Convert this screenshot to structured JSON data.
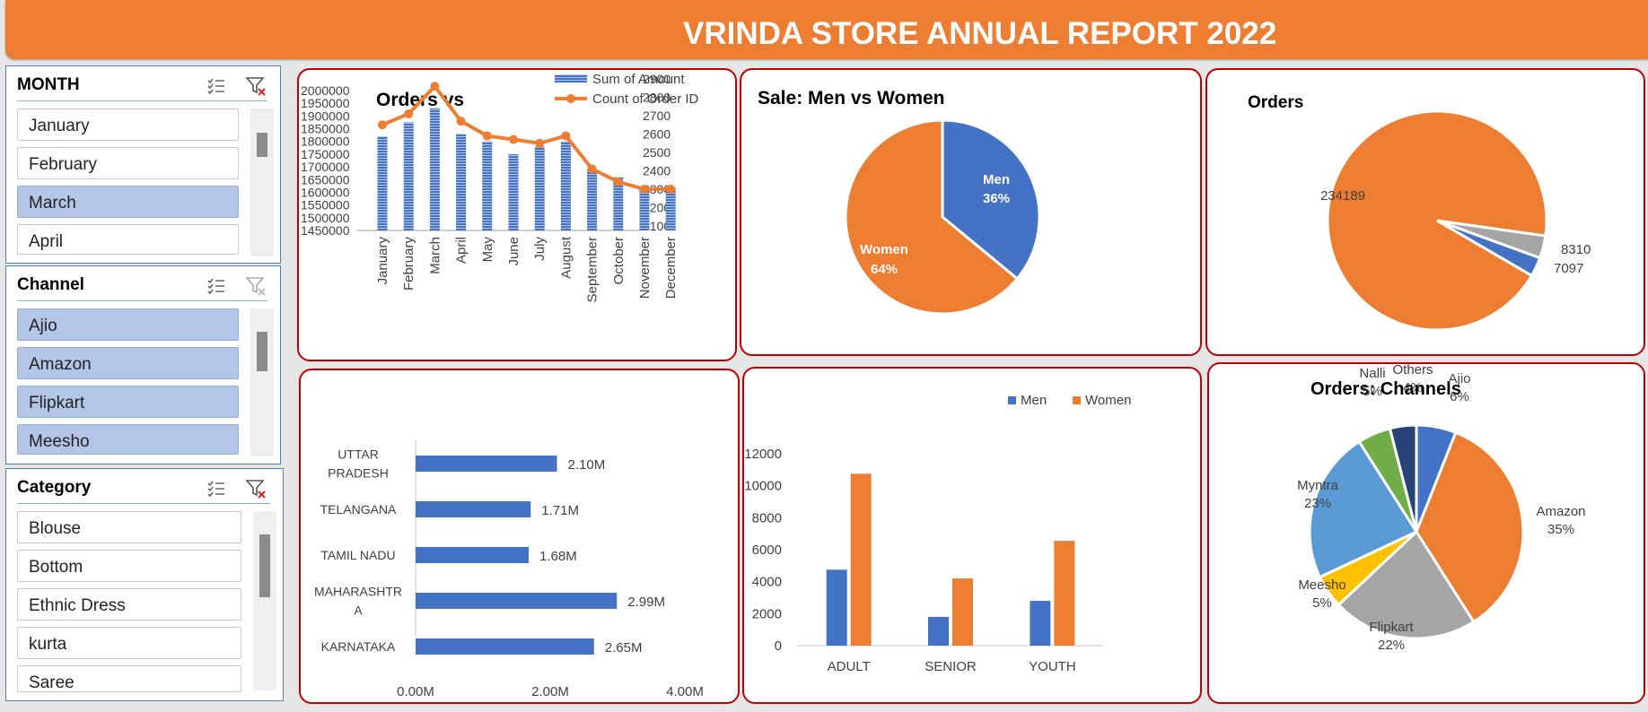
{
  "header": {
    "title": "VRINDA STORE ANNUAL REPORT 2022"
  },
  "slicers": {
    "month": {
      "title": "MONTH",
      "items": [
        {
          "label": "January",
          "selected": false
        },
        {
          "label": "February",
          "selected": false
        },
        {
          "label": "March",
          "selected": true
        },
        {
          "label": "April",
          "selected": false
        }
      ]
    },
    "channel": {
      "title": "Channel",
      "items": [
        {
          "label": "Ajio",
          "selected": true
        },
        {
          "label": "Amazon",
          "selected": true
        },
        {
          "label": "Flipkart",
          "selected": true
        },
        {
          "label": "Meesho",
          "selected": true
        }
      ]
    },
    "category": {
      "title": "Category",
      "items": [
        {
          "label": "Blouse",
          "selected": false
        },
        {
          "label": "Bottom",
          "selected": false
        },
        {
          "label": "Ethnic Dress",
          "selected": false
        },
        {
          "label": "kurta",
          "selected": false
        },
        {
          "label": "Saree",
          "selected": false
        }
      ]
    }
  },
  "icons": {
    "multi_select": "multi-select-icon",
    "clear_filter": "clear-filter-icon"
  },
  "colors": {
    "orange": "#ED7D31",
    "blue": "#4472C4",
    "gray": "#A5A5A5",
    "yellow": "#FFC000",
    "light_blue": "#5B9BD5",
    "green": "#70AD47",
    "navy": "#264478",
    "panel_border": "#C00000",
    "selected_item": "#B4C6E7"
  },
  "chart_data": [
    {
      "id": "orders-vs-sales",
      "type": "bar",
      "title": "Orders vs",
      "categories": [
        "January",
        "February",
        "March",
        "April",
        "May",
        "June",
        "July",
        "August",
        "September",
        "October",
        "November",
        "December"
      ],
      "series": [
        {
          "name": "Sum of Amount",
          "type": "bar",
          "axis": "left",
          "values": [
            1820000,
            1875000,
            1930000,
            1830000,
            1800000,
            1750000,
            1780000,
            1800000,
            1690000,
            1660000,
            1615000,
            1620000
          ]
        },
        {
          "name": "Count of Order ID",
          "type": "line",
          "axis": "right",
          "values": [
            2650,
            2710,
            2860,
            2670,
            2590,
            2570,
            2550,
            2590,
            2410,
            2340,
            2300,
            2300
          ]
        }
      ],
      "y_left": {
        "ticks": [
          "2000000",
          "1950000",
          "1900000",
          "1850000",
          "1800000",
          "1750000",
          "1700000",
          "1650000",
          "1600000",
          "1550000",
          "1500000",
          "1450000"
        ],
        "ylim": [
          1450000,
          2000000
        ]
      },
      "y_right": {
        "ticks": [
          "2900",
          "2800",
          "2700",
          "2600",
          "2500",
          "2400",
          "2300",
          "2200",
          "2100"
        ],
        "ylim": [
          2100,
          2900
        ]
      },
      "legend": "top-right"
    },
    {
      "id": "sale-men-women",
      "type": "pie",
      "title": "Sale: Men vs Women",
      "slices": [
        {
          "name": "Men",
          "label": "36%",
          "value": 36,
          "color": "#4472C4"
        },
        {
          "name": "Women",
          "label": "64%",
          "value": 64,
          "color": "#ED7D31"
        }
      ]
    },
    {
      "id": "orders-status",
      "type": "pie",
      "title": "Orders",
      "slices": [
        {
          "label": "234189",
          "value": 234189,
          "color": "#ED7D31"
        },
        {
          "label": "7097",
          "value": 7097,
          "color": "#4472C4"
        },
        {
          "label": "8310",
          "value": 8310,
          "color": "#A5A5A5"
        }
      ]
    },
    {
      "id": "top-states",
      "type": "bar",
      "orientation": "horizontal",
      "categories": [
        "UTTAR PRADESH",
        "TELANGANA",
        "TAMIL NADU",
        "MAHARASHTRA",
        "KARNATAKA"
      ],
      "category_lines": [
        [
          "UTTAR",
          "PRADESH"
        ],
        [
          "TELANGANA"
        ],
        [
          "TAMIL NADU"
        ],
        [
          "MAHARASHTR",
          "A"
        ],
        [
          "KARNATAKA"
        ]
      ],
      "values": [
        2.1,
        1.71,
        1.68,
        2.99,
        2.65
      ],
      "value_labels": [
        "2.10M",
        "1.71M",
        "1.68M",
        "2.99M",
        "2.65M"
      ],
      "x_ticks": [
        "0.00M",
        "2.00M",
        "4.00M"
      ],
      "xlim": [
        0,
        4
      ]
    },
    {
      "id": "age-gender",
      "type": "bar",
      "categories": [
        "ADULT",
        "SENIOR",
        "YOUTH"
      ],
      "series": [
        {
          "name": "Men",
          "values": [
            4750,
            1800,
            2800
          ],
          "color": "#4472C4"
        },
        {
          "name": "Women",
          "values": [
            10750,
            4200,
            6550
          ],
          "color": "#ED7D31"
        }
      ],
      "y_ticks": [
        "0",
        "2000",
        "4000",
        "6000",
        "8000",
        "10000",
        "12000"
      ],
      "ylim": [
        0,
        12000
      ],
      "legend": "top"
    },
    {
      "id": "orders-channels",
      "type": "pie",
      "title": "Orders: Channels",
      "slices": [
        {
          "name": "Ajio",
          "label": "6%",
          "value": 6,
          "color": "#4472C4"
        },
        {
          "name": "Amazon",
          "label": "35%",
          "value": 35,
          "color": "#ED7D31"
        },
        {
          "name": "Flipkart",
          "label": "22%",
          "value": 22,
          "color": "#A5A5A5"
        },
        {
          "name": "Meesho",
          "label": "5%",
          "value": 5,
          "color": "#FFC000"
        },
        {
          "name": "Myntra",
          "label": "23%",
          "value": 23,
          "color": "#5B9BD5"
        },
        {
          "name": "Nalli",
          "label": "5%",
          "value": 5,
          "color": "#70AD47"
        },
        {
          "name": "Others",
          "label": "4%",
          "value": 4,
          "color": "#264478"
        }
      ]
    }
  ]
}
